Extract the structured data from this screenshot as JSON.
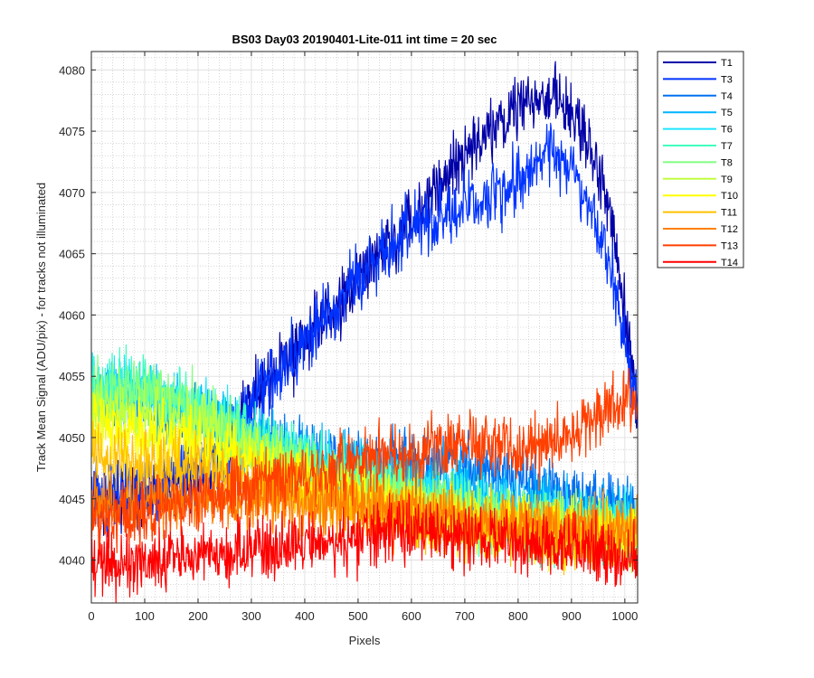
{
  "chart_data": {
    "type": "line",
    "title": "BS03 Day03 20190401-Lite-011 int time = 20 sec",
    "xlabel": "Pixels",
    "ylabel": "Track Mean Signal (ADU/pix) - for tracks not illuminated",
    "xlim": [
      0,
      1024
    ],
    "ylim": [
      4036.5,
      4081.5
    ],
    "x_ticks": [
      0,
      100,
      200,
      300,
      400,
      500,
      600,
      700,
      800,
      900,
      1000
    ],
    "y_ticks": [
      4040,
      4045,
      4050,
      4055,
      4060,
      4065,
      4070,
      4075,
      4080
    ],
    "grid": true,
    "minor_grid": true,
    "legend_position": "outside-top-right",
    "n_points": 1024,
    "series": [
      {
        "name": "T1",
        "color": "#0000a8",
        "x": [
          0,
          100,
          200,
          250,
          300,
          400,
          500,
          600,
          700,
          800,
          850,
          900,
          950,
          980,
          1000,
          1024
        ],
        "y": [
          4045,
          4045,
          4047,
          4049,
          4053,
          4058,
          4063,
          4068,
          4073,
          4077,
          4078,
          4077,
          4072,
          4067,
          4060,
          4052
        ]
      },
      {
        "name": "T3",
        "color": "#0033ff",
        "x": [
          0,
          100,
          200,
          250,
          300,
          400,
          500,
          600,
          700,
          800,
          850,
          900,
          950,
          980,
          1000,
          1024
        ],
        "y": [
          4045.5,
          4045.5,
          4047,
          4049,
          4053,
          4058,
          4063,
          4067,
          4069,
          4071,
          4073,
          4072,
          4067,
          4062,
          4057,
          4053
        ]
      },
      {
        "name": "T4",
        "color": "#0070f0",
        "x": [
          0,
          100,
          200,
          300,
          400,
          500,
          600,
          700,
          800,
          900,
          1024
        ],
        "y": [
          4053,
          4053,
          4052,
          4050,
          4048.5,
          4048,
          4048,
          4047.5,
          4046.5,
          4045.5,
          4044
        ]
      },
      {
        "name": "T5",
        "color": "#00b4ff",
        "x": [
          0,
          100,
          200,
          300,
          400,
          500,
          600,
          700,
          800,
          900,
          1024
        ],
        "y": [
          4053.5,
          4053,
          4052,
          4050,
          4048.5,
          4047.5,
          4046.5,
          4045.5,
          4044.5,
          4044,
          4043.5
        ]
      },
      {
        "name": "T6",
        "color": "#1ee6ff",
        "x": [
          0,
          100,
          200,
          300,
          400,
          500,
          600,
          700,
          800,
          900,
          1024
        ],
        "y": [
          4054,
          4053.5,
          4052,
          4050,
          4048,
          4047,
          4046,
          4045,
          4044,
          4043.5,
          4043
        ]
      },
      {
        "name": "T7",
        "color": "#40ffc0",
        "x": [
          0,
          100,
          200,
          300,
          400,
          500,
          600,
          700,
          800,
          900,
          1024
        ],
        "y": [
          4054.5,
          4054,
          4052.5,
          4050,
          4048,
          4046.5,
          4045,
          4044,
          4043,
          4042.5,
          4042
        ]
      },
      {
        "name": "T8",
        "color": "#80ff80",
        "x": [
          0,
          100,
          200,
          300,
          400,
          500,
          600,
          700,
          800,
          900,
          1024
        ],
        "y": [
          4054,
          4053.5,
          4052,
          4049.5,
          4047.5,
          4046,
          4045,
          4044,
          4043,
          4042.5,
          4042
        ]
      },
      {
        "name": "T9",
        "color": "#c0ff40",
        "x": [
          0,
          100,
          200,
          300,
          400,
          500,
          600,
          700,
          800,
          900,
          1024
        ],
        "y": [
          4052.5,
          4052,
          4051,
          4049,
          4047,
          4045.5,
          4044.5,
          4043.5,
          4043,
          4042.5,
          4042
        ]
      },
      {
        "name": "T10",
        "color": "#ffff00",
        "x": [
          0,
          100,
          200,
          300,
          400,
          500,
          600,
          700,
          800,
          900,
          1024
        ],
        "y": [
          4051,
          4050.5,
          4049.5,
          4048,
          4046.5,
          4045,
          4044,
          4043,
          4042.5,
          4042,
          4042
        ]
      },
      {
        "name": "T11",
        "color": "#ffc000",
        "x": [
          0,
          100,
          200,
          300,
          400,
          500,
          600,
          700,
          800,
          900,
          1024
        ],
        "y": [
          4048.5,
          4048,
          4047.5,
          4046.5,
          4045.5,
          4044.5,
          4043.5,
          4043,
          4042.5,
          4042,
          4042
        ]
      },
      {
        "name": "T12",
        "color": "#ff8000",
        "x": [
          0,
          100,
          200,
          300,
          400,
          500,
          600,
          700,
          800,
          900,
          1024
        ],
        "y": [
          4045,
          4045,
          4045,
          4045,
          4045,
          4044.5,
          4044,
          4043.5,
          4043,
          4042.5,
          4042
        ]
      },
      {
        "name": "T13",
        "color": "#ff4000",
        "x": [
          0,
          100,
          200,
          300,
          400,
          500,
          600,
          700,
          800,
          900,
          1000,
          1024
        ],
        "y": [
          4043,
          4044,
          4045,
          4046,
          4047,
          4048,
          4048.5,
          4049.5,
          4049,
          4050,
          4053,
          4053.5
        ]
      },
      {
        "name": "T14",
        "color": "#ff0000",
        "x": [
          0,
          100,
          200,
          300,
          400,
          500,
          600,
          700,
          800,
          900,
          1024
        ],
        "y": [
          4039.5,
          4040,
          4040.5,
          4041,
          4041.5,
          4042,
          4042.5,
          4042,
          4041.5,
          4041,
          4040
        ]
      }
    ]
  }
}
